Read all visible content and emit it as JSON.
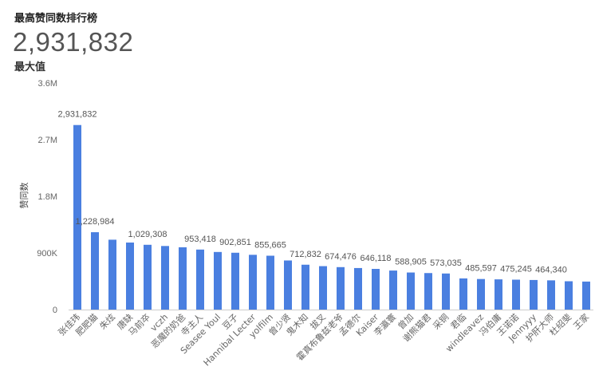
{
  "header": {
    "title": "最高赞同数排行榜",
    "scorecard_value": "2,931,832",
    "scorecard_label": "最大值"
  },
  "chart_data": {
    "type": "bar",
    "ylabel": "赞同数",
    "xlabel": "",
    "ylim": [
      0,
      3600000
    ],
    "yticks": [
      0,
      900000,
      1800000,
      2700000,
      3600000
    ],
    "ytick_labels": [
      "0",
      "900K",
      "1.8M",
      "2.7M",
      "3.6M"
    ],
    "bar_color": "#4a7fe0",
    "categories": [
      "张佳玮",
      "肥肥猫",
      "朱炫",
      "唐缺",
      "马前卒",
      "vczh",
      "恶魔的奶爸",
      "寺主人",
      "Seasee Youl",
      "豆子",
      "Hannibal Lecter",
      "yolfilm",
      "曾少贤",
      "鬼木知",
      "拔叉",
      "霍真布鲁兹老爷",
      "孟德尔",
      "Kaiser",
      "李瀛寰",
      "曾加",
      "谢熊猫君",
      "采铜",
      "君临",
      "windleavez",
      "冯伯庸",
      "王诺诺",
      "Jennyyy",
      "护肝大师",
      "杜绍斐",
      "王家"
    ],
    "values": [
      2931832,
      1228984,
      1110000,
      1065000,
      1029308,
      1010000,
      990000,
      953418,
      915000,
      902851,
      870000,
      855665,
      780000,
      712832,
      690000,
      674476,
      660000,
      646118,
      620000,
      588905,
      580000,
      573035,
      495000,
      485597,
      480000,
      475245,
      470000,
      464340,
      450000,
      445000
    ],
    "data_labels": [
      "2,931,832",
      "1,228,984",
      "",
      "",
      "1,029,308",
      "",
      "",
      "953,418",
      "",
      "902,851",
      "",
      "855,665",
      "",
      "712,832",
      "",
      "674,476",
      "",
      "646,118",
      "",
      "588,905",
      "",
      "573,035",
      "",
      "485,597",
      "",
      "475,245",
      "",
      "464,340",
      "",
      ""
    ],
    "grid": false,
    "legend": "none"
  }
}
